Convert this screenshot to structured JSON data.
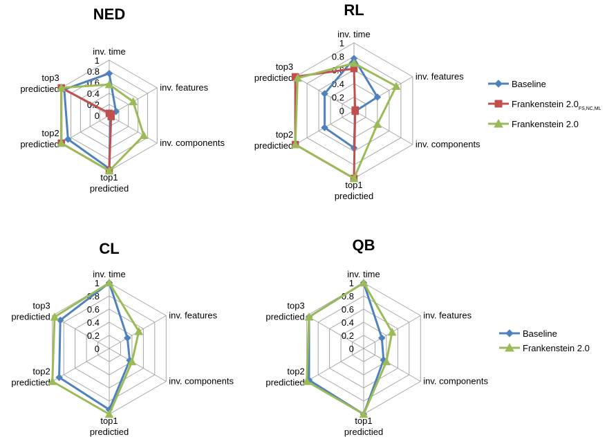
{
  "colors": {
    "Baseline": "#4F81BD",
    "Frankenstein 2.0 FS,NC,ML": "#C0504D",
    "Frankenstein 2.0": "#9BBB59",
    "grid": "#A6A6A6"
  },
  "legends": [
    {
      "entries": [
        {
          "name": "Baseline",
          "marker": "diamond"
        },
        {
          "name": "Frankenstein 2.0",
          "sub": "FS,NC,ML",
          "marker": "square",
          "color_key": "Frankenstein 2.0 FS,NC,ML"
        },
        {
          "name": "Frankenstein 2.0",
          "marker": "triangle"
        }
      ]
    },
    {
      "entries": [
        {
          "name": "Baseline",
          "marker": "diamond"
        },
        {
          "name": "Frankenstein 2.0",
          "marker": "triangle"
        }
      ]
    }
  ],
  "chart_data": [
    {
      "type": "radar",
      "title": "NED",
      "axes": [
        {
          "lines": [
            "inv. time"
          ]
        },
        {
          "lines": [
            "inv. features"
          ]
        },
        {
          "lines": [
            "inv. components"
          ]
        },
        {
          "lines": [
            "top1",
            "predictied"
          ]
        },
        {
          "lines": [
            "top2",
            "predictied"
          ]
        },
        {
          "lines": [
            "top3",
            "predictied"
          ]
        }
      ],
      "ticks": [
        "0",
        "0.2",
        "0.4",
        "0.6",
        "0.8",
        "1"
      ],
      "rmax": 1,
      "series": [
        {
          "name": "Baseline",
          "marker": "diamond",
          "values": [
            0.76,
            0.14,
            0.02,
            0.96,
            0.86,
            0.94
          ]
        },
        {
          "name": "Frankenstein 2.0 FS,NC,ML",
          "marker": "square",
          "values": [
            0.04,
            0.04,
            0.04,
            1.0,
            1.0,
            1.0
          ]
        },
        {
          "name": "Frankenstein 2.0",
          "marker": "triangle",
          "values": [
            0.56,
            0.5,
            0.72,
            1.0,
            1.0,
            1.0
          ]
        }
      ]
    },
    {
      "type": "radar",
      "title": "RL",
      "axes": [
        {
          "lines": [
            "inv. time"
          ]
        },
        {
          "lines": [
            "inv. features"
          ]
        },
        {
          "lines": [
            "inv. components"
          ]
        },
        {
          "lines": [
            "top1",
            "predictied"
          ]
        },
        {
          "lines": [
            "top2",
            "predictied"
          ]
        },
        {
          "lines": [
            "top3",
            "predictied"
          ]
        }
      ],
      "ticks": [
        "0",
        "0.2",
        "0.4",
        "0.6",
        "0.8",
        "1"
      ],
      "rmax": 1,
      "series": [
        {
          "name": "Baseline",
          "marker": "diamond",
          "values": [
            0.77,
            0.4,
            0.02,
            0.55,
            0.5,
            0.5
          ]
        },
        {
          "name": "Frankenstein 2.0 FS,NC,ML",
          "marker": "square",
          "values": [
            0.62,
            0.02,
            0.02,
            1.0,
            1.0,
            1.0
          ]
        },
        {
          "name": "Frankenstein 2.0",
          "marker": "triangle",
          "values": [
            0.7,
            0.72,
            0.4,
            1.0,
            1.0,
            0.96
          ]
        }
      ]
    },
    {
      "type": "radar",
      "title": "CL",
      "axes": [
        {
          "lines": [
            "inv. time"
          ]
        },
        {
          "lines": [
            "inv. features"
          ]
        },
        {
          "lines": [
            "inv. components"
          ]
        },
        {
          "lines": [
            "top1",
            "predictied"
          ]
        },
        {
          "lines": [
            "top2",
            "predictied"
          ]
        },
        {
          "lines": [
            "top3",
            "predictied"
          ]
        }
      ],
      "ticks": [
        "0",
        "0.2",
        "0.4",
        "0.6",
        "0.8",
        "1"
      ],
      "rmax": 1,
      "series": [
        {
          "name": "Baseline",
          "marker": "diamond",
          "values": [
            1.0,
            0.32,
            0.36,
            0.93,
            0.88,
            0.86
          ]
        },
        {
          "name": "Frankenstein 2.0",
          "marker": "triangle",
          "values": [
            1.0,
            0.52,
            0.4,
            1.0,
            1.0,
            0.96
          ]
        }
      ]
    },
    {
      "type": "radar",
      "title": "QB",
      "axes": [
        {
          "lines": [
            "inv. time"
          ]
        },
        {
          "lines": [
            "inv. features"
          ]
        },
        {
          "lines": [
            "inv. components"
          ]
        },
        {
          "lines": [
            "top1",
            "predictied"
          ]
        },
        {
          "lines": [
            "top2",
            "predictied"
          ]
        },
        {
          "lines": [
            "top3",
            "predictied"
          ]
        }
      ],
      "ticks": [
        "0",
        "0.2",
        "0.4",
        "0.6",
        "0.8",
        "1"
      ],
      "rmax": 1,
      "series": [
        {
          "name": "Baseline",
          "marker": "diamond",
          "values": [
            1.0,
            0.32,
            0.35,
            1.0,
            0.96,
            0.96
          ]
        },
        {
          "name": "Frankenstein 2.0",
          "marker": "triangle",
          "values": [
            1.0,
            0.5,
            0.4,
            1.0,
            1.0,
            0.96
          ]
        }
      ]
    }
  ]
}
